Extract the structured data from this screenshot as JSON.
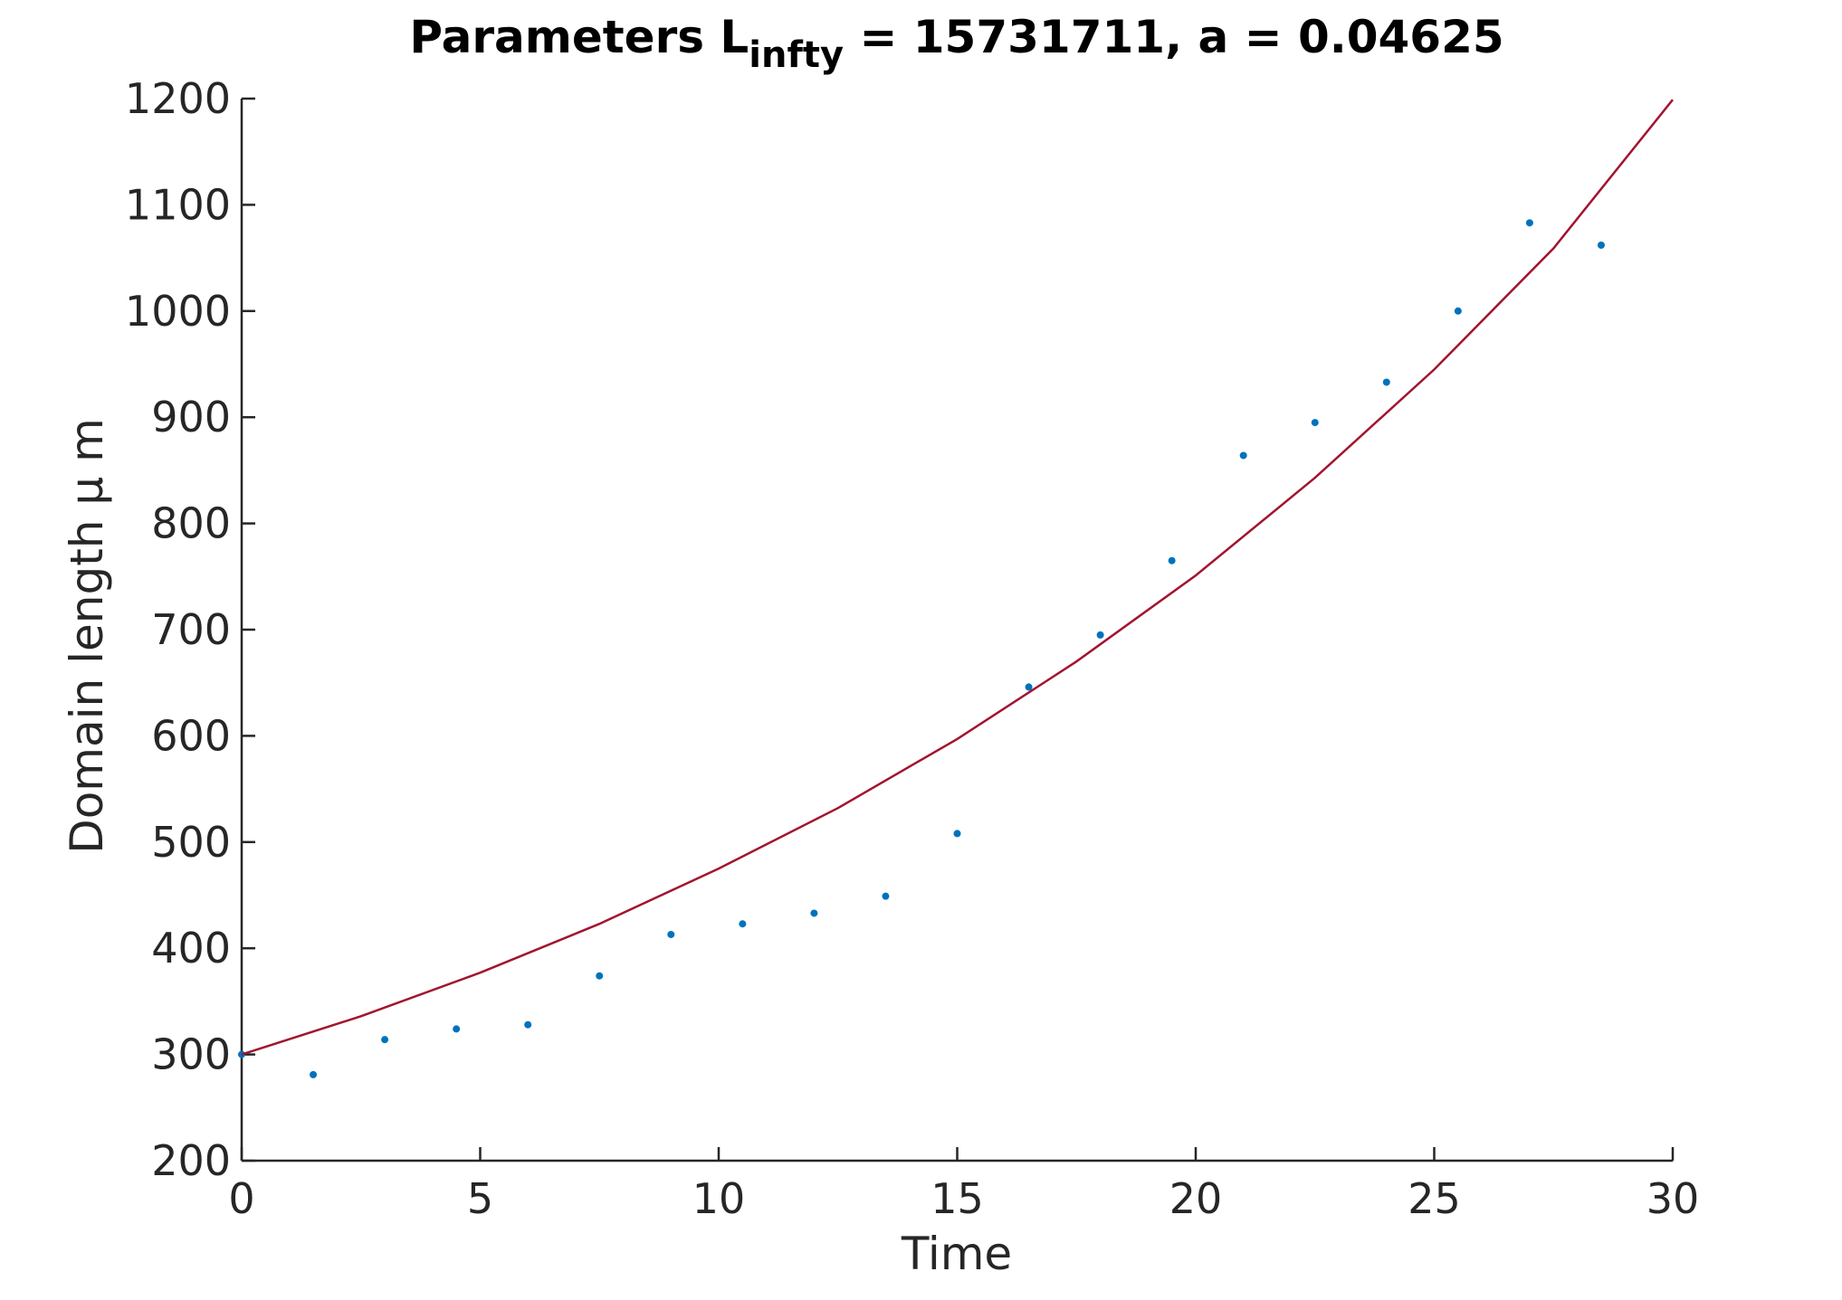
{
  "chart_data": {
    "type": "scatter",
    "title": {
      "main": "Parameters L",
      "subscript": "infty",
      "rest": " = 15731711, a = 0.04625"
    },
    "xlabel": "Time",
    "ylabel": "Domain length μ m",
    "xlim": [
      0,
      30
    ],
    "ylim": [
      200,
      1200
    ],
    "xticks": [
      0,
      5,
      10,
      15,
      20,
      25,
      30
    ],
    "yticks": [
      200,
      300,
      400,
      500,
      600,
      700,
      800,
      900,
      1000,
      1100,
      1200
    ],
    "grid": false,
    "series": [
      {
        "type": "scatter",
        "color": "#0072bd",
        "x": [
          0,
          1.5,
          3,
          4.5,
          6,
          7.5,
          9,
          10.5,
          12,
          13.5,
          15,
          16.5,
          18,
          19.5,
          21,
          22.5,
          24,
          25.5,
          27,
          28.5
        ],
        "y": [
          300,
          281,
          314,
          324,
          328,
          374,
          413,
          423,
          433,
          449,
          508,
          646,
          695,
          765,
          864,
          895,
          933,
          1000,
          1083,
          1062
        ]
      },
      {
        "type": "line",
        "color": "#a2142f",
        "x": [
          0,
          2.5,
          5,
          7.5,
          10,
          12.5,
          15,
          17.5,
          20,
          22.5,
          25,
          27.5,
          30
        ],
        "y": [
          300,
          336,
          377,
          423,
          475,
          532,
          597,
          670,
          751,
          843,
          945,
          1059,
          1199
        ]
      }
    ]
  }
}
